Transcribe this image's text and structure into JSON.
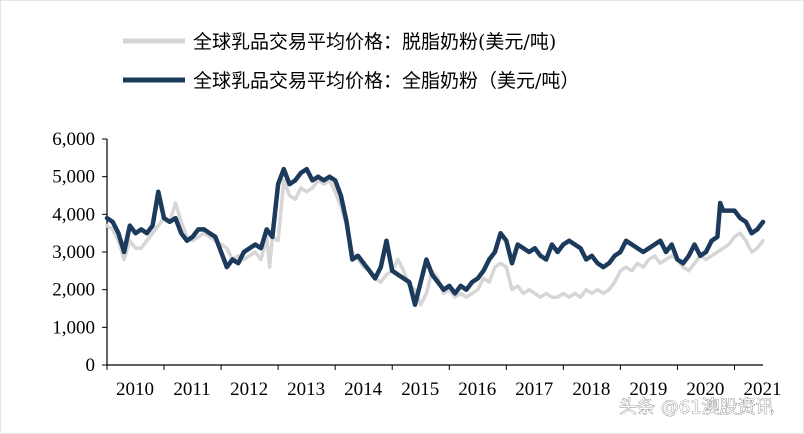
{
  "chart_data": {
    "type": "line",
    "title": "",
    "xlabel": "",
    "ylabel": "",
    "ylim": [
      0,
      6000
    ],
    "xlim": [
      2010.0,
      2021.5
    ],
    "grid": false,
    "legend_position": "top",
    "y_ticks": [
      "0",
      "1,000",
      "2,000",
      "3,000",
      "4,000",
      "5,000",
      "6,000"
    ],
    "x_ticks": [
      "2010",
      "2011",
      "2012",
      "2013",
      "2014",
      "2015",
      "2016",
      "2017",
      "2018",
      "2019",
      "2020",
      "2021"
    ],
    "series": [
      {
        "name": "全球乳品交易平均价格：脱脂奶粉(美元/吨)",
        "color": "#d6d6d6",
        "points": [
          [
            2010.0,
            3700
          ],
          [
            2010.1,
            3600
          ],
          [
            2010.2,
            3300
          ],
          [
            2010.3,
            2800
          ],
          [
            2010.4,
            3300
          ],
          [
            2010.5,
            3100
          ],
          [
            2010.6,
            3100
          ],
          [
            2010.7,
            3300
          ],
          [
            2010.8,
            3500
          ],
          [
            2010.9,
            3700
          ],
          [
            2011.0,
            3900
          ],
          [
            2011.1,
            3800
          ],
          [
            2011.2,
            4300
          ],
          [
            2011.3,
            3800
          ],
          [
            2011.4,
            3400
          ],
          [
            2011.5,
            3300
          ],
          [
            2011.6,
            3400
          ],
          [
            2011.7,
            3500
          ],
          [
            2011.8,
            3400
          ],
          [
            2011.9,
            3300
          ],
          [
            2012.0,
            3200
          ],
          [
            2012.1,
            3100
          ],
          [
            2012.2,
            2800
          ],
          [
            2012.3,
            2900
          ],
          [
            2012.4,
            2800
          ],
          [
            2012.5,
            2900
          ],
          [
            2012.6,
            3000
          ],
          [
            2012.7,
            2800
          ],
          [
            2012.8,
            3400
          ],
          [
            2012.85,
            2600
          ],
          [
            2012.9,
            3400
          ],
          [
            2013.0,
            3300
          ],
          [
            2013.1,
            4900
          ],
          [
            2013.2,
            4500
          ],
          [
            2013.3,
            4400
          ],
          [
            2013.4,
            4700
          ],
          [
            2013.5,
            4600
          ],
          [
            2013.6,
            4700
          ],
          [
            2013.7,
            4900
          ],
          [
            2013.8,
            4800
          ],
          [
            2013.9,
            4900
          ],
          [
            2014.0,
            4600
          ],
          [
            2014.1,
            4200
          ],
          [
            2014.2,
            3700
          ],
          [
            2014.3,
            3000
          ],
          [
            2014.4,
            2800
          ],
          [
            2014.5,
            2600
          ],
          [
            2014.6,
            2500
          ],
          [
            2014.7,
            2300
          ],
          [
            2014.8,
            2200
          ],
          [
            2014.9,
            2400
          ],
          [
            2015.0,
            2500
          ],
          [
            2015.1,
            2800
          ],
          [
            2015.2,
            2500
          ],
          [
            2015.3,
            2100
          ],
          [
            2015.4,
            2000
          ],
          [
            2015.5,
            1600
          ],
          [
            2015.6,
            1900
          ],
          [
            2015.7,
            2500
          ],
          [
            2015.8,
            2300
          ],
          [
            2015.9,
            1900
          ],
          [
            2016.0,
            2000
          ],
          [
            2016.1,
            1800
          ],
          [
            2016.2,
            1900
          ],
          [
            2016.3,
            1800
          ],
          [
            2016.4,
            1900
          ],
          [
            2016.5,
            2000
          ],
          [
            2016.6,
            2300
          ],
          [
            2016.7,
            2200
          ],
          [
            2016.8,
            2600
          ],
          [
            2016.9,
            2700
          ],
          [
            2017.0,
            2600
          ],
          [
            2017.1,
            2000
          ],
          [
            2017.2,
            2100
          ],
          [
            2017.3,
            1900
          ],
          [
            2017.4,
            2000
          ],
          [
            2017.5,
            1900
          ],
          [
            2017.6,
            1800
          ],
          [
            2017.7,
            1900
          ],
          [
            2017.8,
            1800
          ],
          [
            2017.9,
            1800
          ],
          [
            2018.0,
            1900
          ],
          [
            2018.1,
            1800
          ],
          [
            2018.2,
            1900
          ],
          [
            2018.3,
            1800
          ],
          [
            2018.4,
            2000
          ],
          [
            2018.5,
            1900
          ],
          [
            2018.6,
            2000
          ],
          [
            2018.7,
            1900
          ],
          [
            2018.8,
            2000
          ],
          [
            2018.9,
            2200
          ],
          [
            2019.0,
            2500
          ],
          [
            2019.1,
            2600
          ],
          [
            2019.2,
            2500
          ],
          [
            2019.3,
            2700
          ],
          [
            2019.4,
            2600
          ],
          [
            2019.5,
            2800
          ],
          [
            2019.6,
            2900
          ],
          [
            2019.7,
            2700
          ],
          [
            2019.8,
            2800
          ],
          [
            2019.9,
            2900
          ],
          [
            2020.0,
            2800
          ],
          [
            2020.1,
            2600
          ],
          [
            2020.2,
            2500
          ],
          [
            2020.3,
            2700
          ],
          [
            2020.4,
            2900
          ],
          [
            2020.5,
            2800
          ],
          [
            2020.6,
            2900
          ],
          [
            2020.7,
            3000
          ],
          [
            2020.8,
            3100
          ],
          [
            2020.9,
            3200
          ],
          [
            2021.0,
            3400
          ],
          [
            2021.1,
            3500
          ],
          [
            2021.2,
            3300
          ],
          [
            2021.3,
            3000
          ],
          [
            2021.4,
            3100
          ],
          [
            2021.5,
            3300
          ]
        ]
      },
      {
        "name": "全球乳品交易平均价格：全脂奶粉（美元/吨）",
        "color": "#1b3a5c",
        "points": [
          [
            2010.0,
            3900
          ],
          [
            2010.1,
            3800
          ],
          [
            2010.2,
            3500
          ],
          [
            2010.3,
            3000
          ],
          [
            2010.4,
            3700
          ],
          [
            2010.5,
            3500
          ],
          [
            2010.6,
            3600
          ],
          [
            2010.7,
            3500
          ],
          [
            2010.8,
            3700
          ],
          [
            2010.9,
            4600
          ],
          [
            2011.0,
            3900
          ],
          [
            2011.1,
            3800
          ],
          [
            2011.2,
            3900
          ],
          [
            2011.3,
            3500
          ],
          [
            2011.4,
            3300
          ],
          [
            2011.5,
            3400
          ],
          [
            2011.6,
            3600
          ],
          [
            2011.7,
            3600
          ],
          [
            2011.8,
            3500
          ],
          [
            2011.9,
            3400
          ],
          [
            2012.0,
            3000
          ],
          [
            2012.1,
            2600
          ],
          [
            2012.2,
            2800
          ],
          [
            2012.3,
            2700
          ],
          [
            2012.4,
            3000
          ],
          [
            2012.5,
            3100
          ],
          [
            2012.6,
            3200
          ],
          [
            2012.7,
            3100
          ],
          [
            2012.8,
            3600
          ],
          [
            2012.9,
            3400
          ],
          [
            2013.0,
            4800
          ],
          [
            2013.1,
            5200
          ],
          [
            2013.2,
            4800
          ],
          [
            2013.3,
            4900
          ],
          [
            2013.4,
            5100
          ],
          [
            2013.5,
            5200
          ],
          [
            2013.6,
            4900
          ],
          [
            2013.7,
            5000
          ],
          [
            2013.8,
            4900
          ],
          [
            2013.9,
            5000
          ],
          [
            2014.0,
            4900
          ],
          [
            2014.1,
            4500
          ],
          [
            2014.2,
            3800
          ],
          [
            2014.3,
            2800
          ],
          [
            2014.4,
            2900
          ],
          [
            2014.5,
            2700
          ],
          [
            2014.6,
            2500
          ],
          [
            2014.7,
            2300
          ],
          [
            2014.8,
            2600
          ],
          [
            2014.9,
            3300
          ],
          [
            2015.0,
            2500
          ],
          [
            2015.1,
            2400
          ],
          [
            2015.2,
            2300
          ],
          [
            2015.3,
            2200
          ],
          [
            2015.4,
            1600
          ],
          [
            2015.5,
            2200
          ],
          [
            2015.6,
            2800
          ],
          [
            2015.7,
            2400
          ],
          [
            2015.8,
            2200
          ],
          [
            2015.9,
            2000
          ],
          [
            2016.0,
            2100
          ],
          [
            2016.1,
            1900
          ],
          [
            2016.2,
            2100
          ],
          [
            2016.3,
            2000
          ],
          [
            2016.4,
            2200
          ],
          [
            2016.5,
            2300
          ],
          [
            2016.6,
            2500
          ],
          [
            2016.7,
            2800
          ],
          [
            2016.8,
            3000
          ],
          [
            2016.9,
            3500
          ],
          [
            2017.0,
            3300
          ],
          [
            2017.1,
            2700
          ],
          [
            2017.2,
            3200
          ],
          [
            2017.3,
            3100
          ],
          [
            2017.4,
            3000
          ],
          [
            2017.5,
            3100
          ],
          [
            2017.6,
            2900
          ],
          [
            2017.7,
            2800
          ],
          [
            2017.8,
            3200
          ],
          [
            2017.9,
            3000
          ],
          [
            2018.0,
            3200
          ],
          [
            2018.1,
            3300
          ],
          [
            2018.2,
            3200
          ],
          [
            2018.3,
            3100
          ],
          [
            2018.4,
            2800
          ],
          [
            2018.5,
            2900
          ],
          [
            2018.6,
            2700
          ],
          [
            2018.7,
            2600
          ],
          [
            2018.8,
            2700
          ],
          [
            2018.9,
            2900
          ],
          [
            2019.0,
            3000
          ],
          [
            2019.1,
            3300
          ],
          [
            2019.2,
            3200
          ],
          [
            2019.3,
            3100
          ],
          [
            2019.4,
            3000
          ],
          [
            2019.5,
            3100
          ],
          [
            2019.6,
            3200
          ],
          [
            2019.7,
            3300
          ],
          [
            2019.8,
            3000
          ],
          [
            2019.9,
            3200
          ],
          [
            2020.0,
            2800
          ],
          [
            2020.1,
            2700
          ],
          [
            2020.2,
            2900
          ],
          [
            2020.3,
            3200
          ],
          [
            2020.4,
            2900
          ],
          [
            2020.5,
            3000
          ],
          [
            2020.6,
            3300
          ],
          [
            2020.7,
            3400
          ],
          [
            2020.75,
            4300
          ],
          [
            2020.8,
            4100
          ],
          [
            2020.9,
            4100
          ],
          [
            2021.0,
            4100
          ],
          [
            2021.1,
            3900
          ],
          [
            2021.2,
            3800
          ],
          [
            2021.3,
            3500
          ],
          [
            2021.4,
            3600
          ],
          [
            2021.5,
            3800
          ]
        ]
      }
    ]
  },
  "watermark": "头条 @61澳股资讯"
}
